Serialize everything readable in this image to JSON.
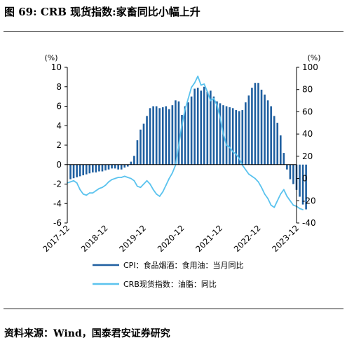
{
  "title": "图 69: CRB 现货指数:家畜同比小幅上升",
  "source": "资料来源：Wind，国泰君安证券研究",
  "chart_data": {
    "type": "bar+line",
    "left_axis": {
      "unit_label": "(%)",
      "ylim": [
        -6,
        10
      ],
      "ticks": [
        -6,
        -4,
        -2,
        0,
        2,
        4,
        6,
        8,
        10
      ]
    },
    "right_axis": {
      "unit_label": "(%)",
      "ylim": [
        -40,
        100
      ],
      "ticks": [
        -40,
        -20,
        0,
        20,
        40,
        60,
        80,
        100
      ]
    },
    "x_ticks": [
      "2017-12",
      "2018-12",
      "2019-12",
      "2020-12",
      "2021-12",
      "2022-12",
      "2023-12"
    ],
    "legend_position": "bottom",
    "series": [
      {
        "name": "CPI：食品烟酒：食用油：当月同比",
        "type": "bar",
        "axis": "left",
        "color": "#1f5fa0",
        "start": "2018-01",
        "values": [
          -1.5,
          -1.4,
          -1.3,
          -1.2,
          -1.1,
          -1.0,
          -0.9,
          -0.8,
          -0.8,
          -0.7,
          -0.7,
          -0.6,
          -0.5,
          -0.4,
          -0.4,
          -0.5,
          -0.5,
          -0.3,
          -0.2,
          0.3,
          0.9,
          2.5,
          3.6,
          4.2,
          5.0,
          5.8,
          6.0,
          6.0,
          5.8,
          5.9,
          6.0,
          5.7,
          6.1,
          6.6,
          6.5,
          5.1,
          6.0,
          6.4,
          7.0,
          7.8,
          7.9,
          7.6,
          8.0,
          7.5,
          7.6,
          7.0,
          6.5,
          6.3,
          6.1,
          6.0,
          5.9,
          5.8,
          5.6,
          5.5,
          5.6,
          6.4,
          7.1,
          7.9,
          8.4,
          8.4,
          7.7,
          7.2,
          6.6,
          6.0,
          5.0,
          4.3,
          3.0,
          1.2,
          -0.5,
          -1.5,
          -2.0,
          -2.6,
          -3.3,
          -4.1,
          -4.6
        ]
      },
      {
        "name": "CRB现货指数：油脂：同比",
        "type": "line",
        "axis": "right",
        "color": "#5bc3ee",
        "points": [
          [
            "2017-12",
            -4
          ],
          [
            "2018-01",
            -3
          ],
          [
            "2018-02",
            -2
          ],
          [
            "2018-03",
            -4
          ],
          [
            "2018-04",
            -10
          ],
          [
            "2018-05",
            -14
          ],
          [
            "2018-06",
            -15
          ],
          [
            "2018-07",
            -13
          ],
          [
            "2018-08",
            -13
          ],
          [
            "2018-09",
            -11
          ],
          [
            "2018-10",
            -9
          ],
          [
            "2018-11",
            -8
          ],
          [
            "2018-12",
            -6
          ],
          [
            "2019-01",
            -3
          ],
          [
            "2019-02",
            -1
          ],
          [
            "2019-03",
            0
          ],
          [
            "2019-04",
            1
          ],
          [
            "2019-05",
            1
          ],
          [
            "2019-06",
            2
          ],
          [
            "2019-07",
            1
          ],
          [
            "2019-08",
            0
          ],
          [
            "2019-09",
            -2
          ],
          [
            "2019-10",
            -7
          ],
          [
            "2019-11",
            -8
          ],
          [
            "2019-12",
            -5
          ],
          [
            "2020-01",
            -2
          ],
          [
            "2020-02",
            -5
          ],
          [
            "2020-03",
            -10
          ],
          [
            "2020-04",
            -14
          ],
          [
            "2020-05",
            -16
          ],
          [
            "2020-06",
            -12
          ],
          [
            "2020-07",
            -6
          ],
          [
            "2020-08",
            0
          ],
          [
            "2020-09",
            5
          ],
          [
            "2020-10",
            12
          ],
          [
            "2020-11",
            30
          ],
          [
            "2020-12",
            48
          ],
          [
            "2021-01",
            62
          ],
          [
            "2021-02",
            72
          ],
          [
            "2021-03",
            82
          ],
          [
            "2021-04",
            86
          ],
          [
            "2021-05",
            92
          ],
          [
            "2021-06",
            84
          ],
          [
            "2021-07",
            85
          ],
          [
            "2021-08",
            78
          ],
          [
            "2021-09",
            70
          ],
          [
            "2021-10",
            72
          ],
          [
            "2021-11",
            66
          ],
          [
            "2021-12",
            55
          ],
          [
            "2022-01",
            40
          ],
          [
            "2022-02",
            30
          ],
          [
            "2022-03",
            28
          ],
          [
            "2022-04",
            24
          ],
          [
            "2022-05",
            22
          ],
          [
            "2022-06",
            18
          ],
          [
            "2022-07",
            12
          ],
          [
            "2022-08",
            8
          ],
          [
            "2022-09",
            4
          ],
          [
            "2022-10",
            2
          ],
          [
            "2022-11",
            0
          ],
          [
            "2022-12",
            -3
          ],
          [
            "2023-01",
            -8
          ],
          [
            "2023-02",
            -14
          ],
          [
            "2023-03",
            -18
          ],
          [
            "2023-04",
            -24
          ],
          [
            "2023-05",
            -26
          ],
          [
            "2023-06",
            -20
          ],
          [
            "2023-07",
            -14
          ],
          [
            "2023-08",
            -10
          ],
          [
            "2023-09",
            -16
          ],
          [
            "2023-10",
            -20
          ],
          [
            "2023-11",
            -24
          ],
          [
            "2023-12",
            -25
          ],
          [
            "2024-01",
            -27
          ],
          [
            "2024-02",
            -28
          ]
        ]
      }
    ]
  }
}
